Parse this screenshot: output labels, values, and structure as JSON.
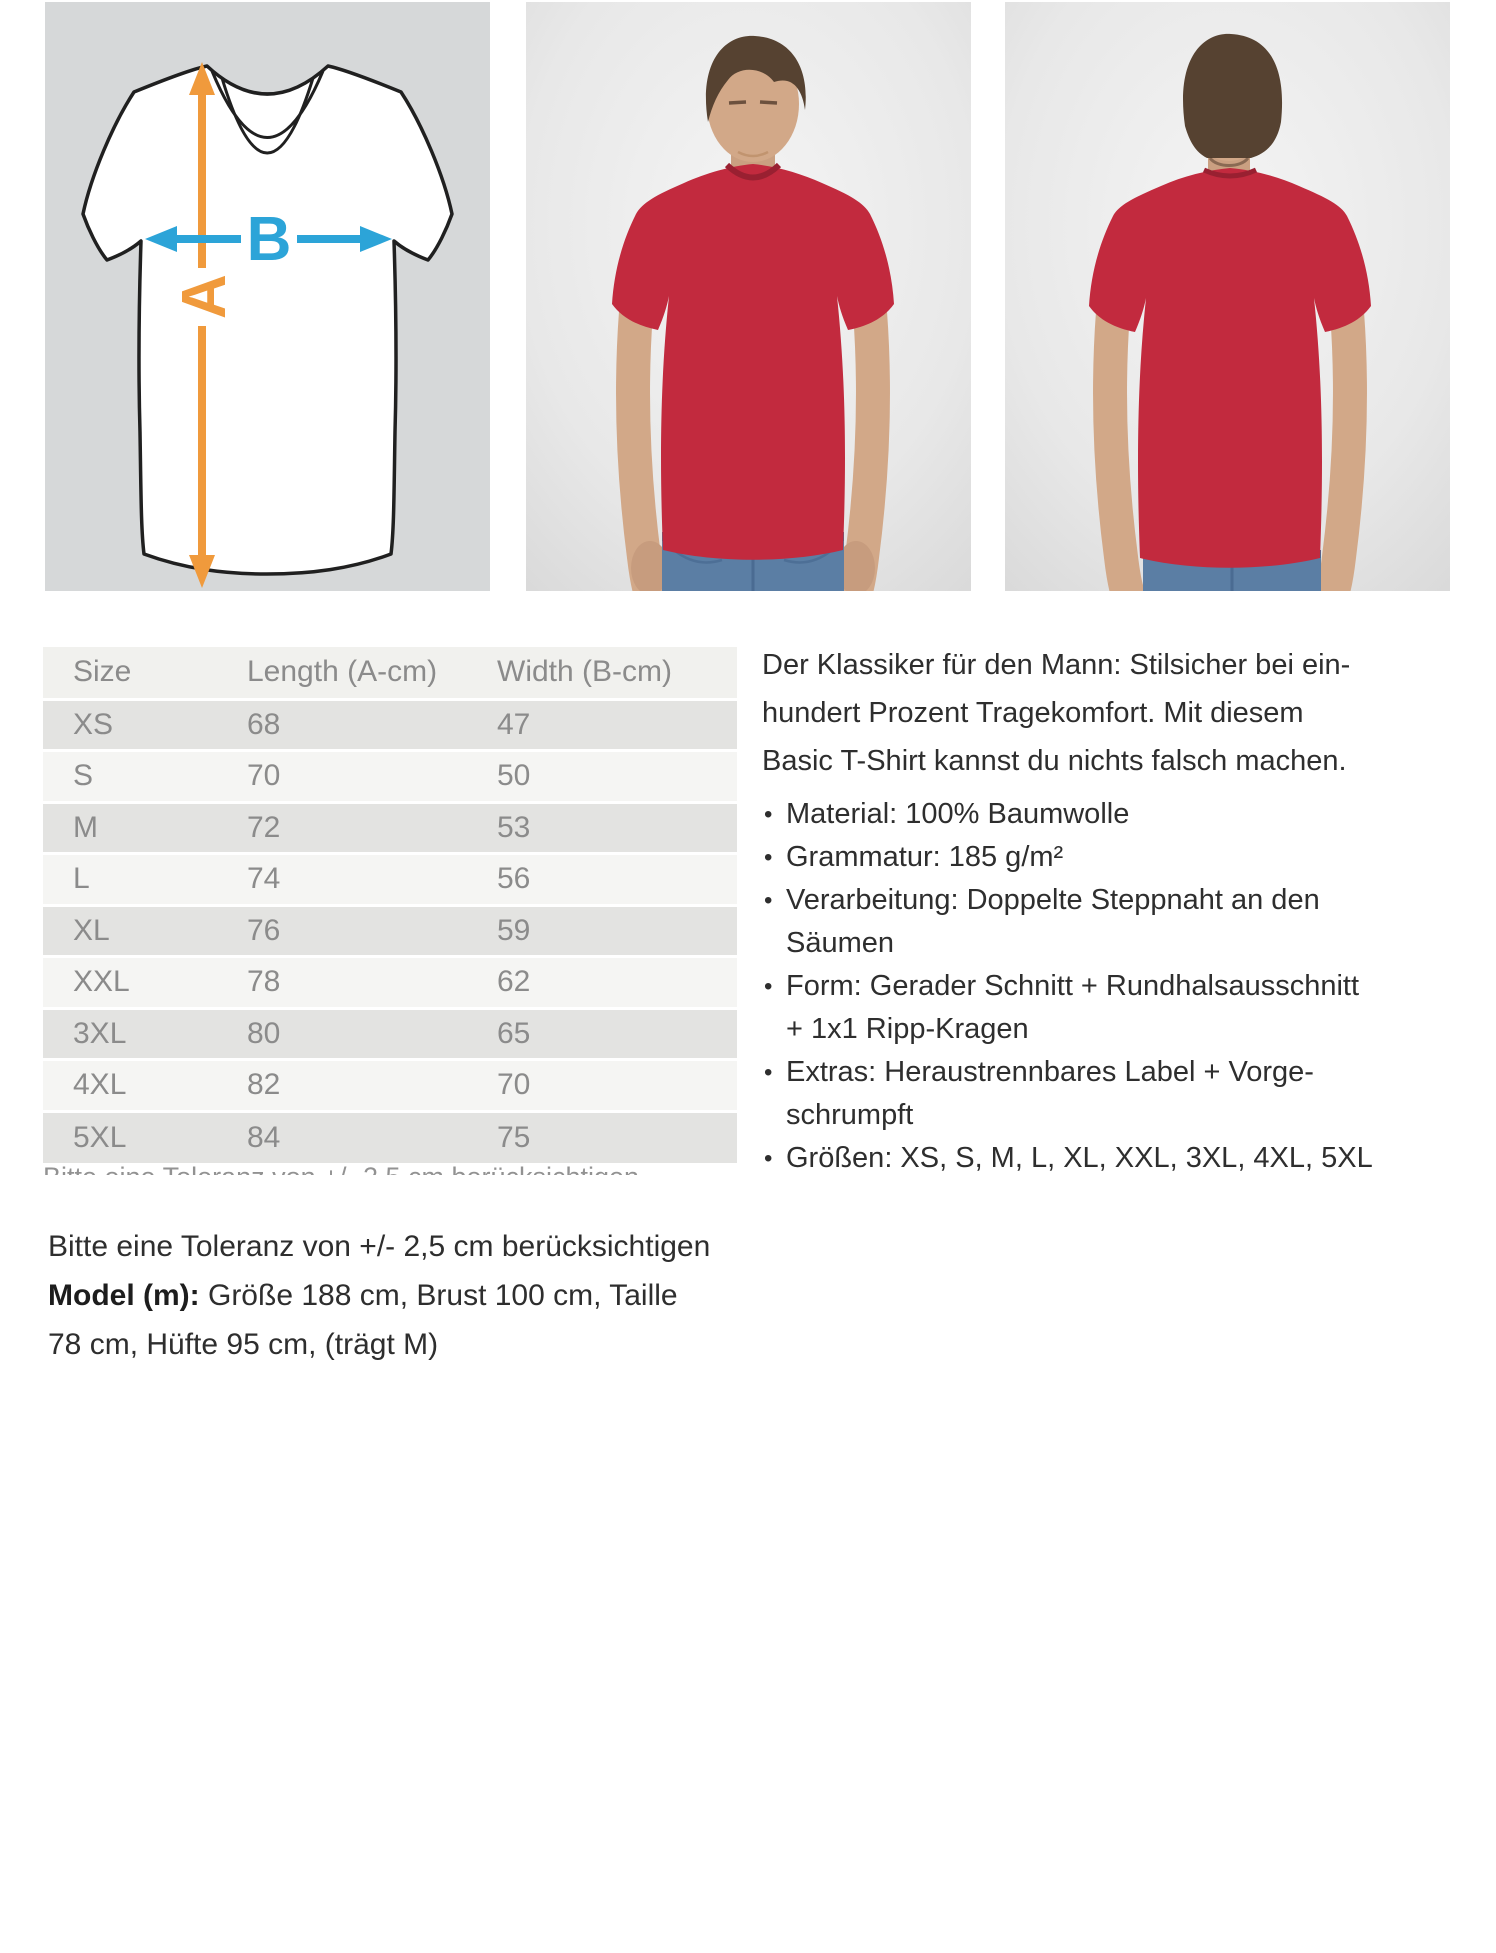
{
  "theme": {
    "accent_orange": "#f09a3c",
    "accent_blue": "#2ca4d8",
    "shirt_red": "#c22a3e",
    "diagram_background": "#d6d8d9",
    "table_stripe_dark": "#e3e3e1",
    "table_stripe_light": "#f5f5f3",
    "table_header_background": "#f1f1ee",
    "table_text_color": "#8b8b8b",
    "body_text_color": "#2e2e2e"
  },
  "images": {
    "diagram": {
      "length_label": "A",
      "width_label": "B"
    }
  },
  "size_table": {
    "columns": [
      "Size",
      "Length (A-cm)",
      "Width (B-cm)"
    ],
    "rows": [
      [
        "XS",
        "68",
        "47"
      ],
      [
        "S",
        "70",
        "50"
      ],
      [
        "M",
        "72",
        "53"
      ],
      [
        "L",
        "74",
        "56"
      ],
      [
        "XL",
        "76",
        "59"
      ],
      [
        "XXL",
        "78",
        "62"
      ],
      [
        "3XL",
        "80",
        "65"
      ],
      [
        "4XL",
        "82",
        "70"
      ],
      [
        "5XL",
        "84",
        "75"
      ]
    ],
    "cutoff_text": "Bitte eine Toleranz von +/- 2,5 cm berücksichtigen"
  },
  "description": {
    "intro": "Der Klassiker für den Mann: Stilsicher bei ein-\nhundert Prozent Tragekomfort. Mit diesem\nBasic T-Shirt kannst du nichts falsch machen.",
    "bullets": [
      "Material: 100% Baumwolle",
      "Grammatur: 185 g/m²",
      "Verarbeitung: Doppelte Steppnaht an den\nSäumen",
      "Form: Gerader Schnitt + Rundhalsausschnitt\n+ 1x1 Ripp-Kragen",
      "Extras: Heraustrennbares Label + Vorge-\nschrumpft",
      "Größen: XS, S, M, L, XL, XXL, 3XL, 4XL, 5XL"
    ]
  },
  "notes": {
    "tolerance": "Bitte eine Toleranz von +/- 2,5 cm berücksichtigen",
    "model_label": "Model (m):",
    "model_details": "Größe 188 cm, Brust 100 cm, Taille\n78 cm, Hüfte 95 cm, (trägt M)"
  }
}
